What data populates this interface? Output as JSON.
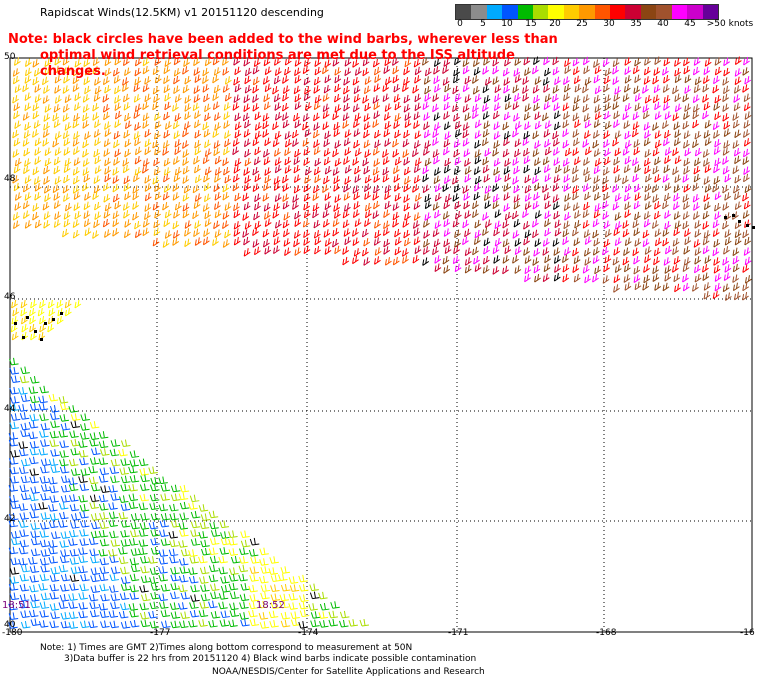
{
  "title": "Rapidscat Winds(12.5KM)  v1  20151120  descending",
  "note_line1": "Note: black circles have been added to the wind barbs, wherever less than",
  "note_line2": "optimal wind retrieval conditions are met due to the ISS altitude changes.",
  "legend": {
    "labels": [
      "0",
      "5",
      "10",
      "15",
      "20",
      "25",
      "30",
      "35",
      "40",
      "45",
      ">50 knots"
    ],
    "colors": [
      "#4a4a4a",
      "#8c8c8c",
      "#00aaff",
      "#0055ff",
      "#00bb00",
      "#aadd00",
      "#ffff00",
      "#ffcc00",
      "#ff9900",
      "#ff5500",
      "#ff0000",
      "#cc0033",
      "#8b4513",
      "#a0522d",
      "#ff00ff",
      "#cc00cc",
      "#660099"
    ]
  },
  "axes": {
    "lat_labels": [
      "50",
      "48",
      "46",
      "44",
      "42",
      "40"
    ],
    "lon_labels": [
      "-180",
      "-177",
      "-174",
      "-171",
      "-168",
      "-16"
    ]
  },
  "time_labels": [
    "18:51",
    "18:52"
  ],
  "footer": {
    "line1": "Note: 1) Times are GMT 2)Times along bottom correspond to measurement at 50N",
    "line2": "3)Data buffer is 22 hrs from 20151120 4) Black wind barbs indicate possible contamination",
    "line3": "NOAA/NESDIS/Center for Satellite Applications and Research"
  },
  "map_data": {
    "lat_range": [
      40,
      50
    ],
    "lon_range": [
      -180,
      -165
    ],
    "grid": "dotted"
  }
}
